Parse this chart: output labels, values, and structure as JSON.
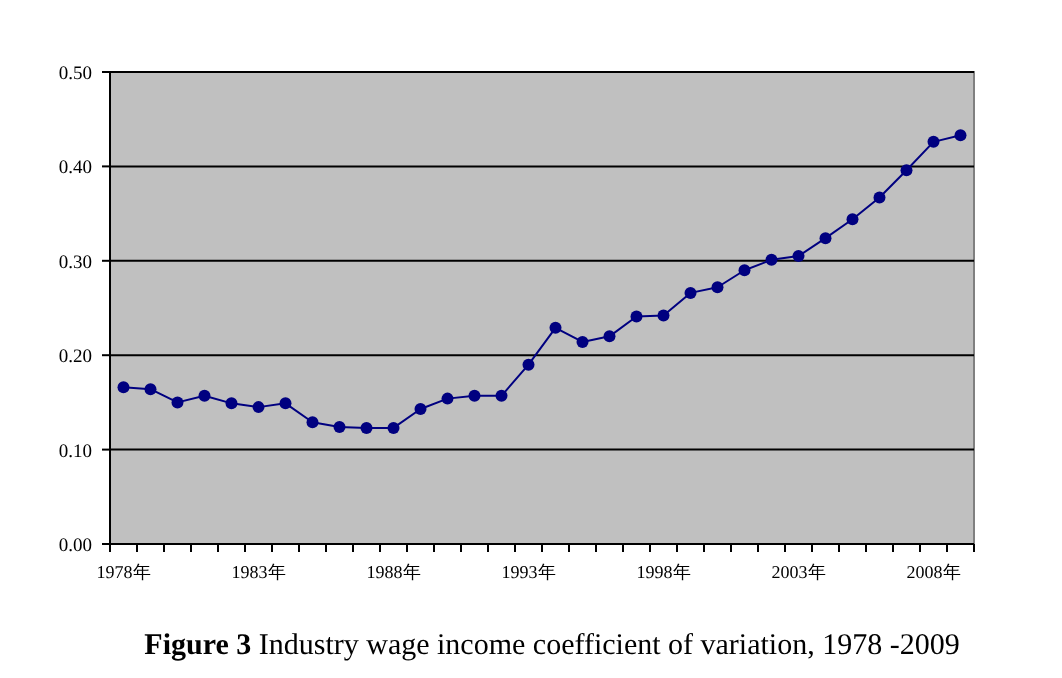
{
  "chart_data": {
    "type": "line",
    "title": "**Figure 3** Industry wage income coefficient of variation, 1978 -2009",
    "categories": [
      "1978年",
      null,
      null,
      null,
      null,
      "1983年",
      null,
      null,
      null,
      null,
      "1988年",
      null,
      null,
      null,
      null,
      "1993年",
      null,
      null,
      null,
      null,
      "1998年",
      null,
      null,
      null,
      null,
      "2003年",
      null,
      null,
      null,
      null,
      "2008年",
      null
    ],
    "values": [
      0.166,
      0.164,
      0.15,
      0.157,
      0.149,
      0.145,
      0.149,
      0.129,
      0.124,
      0.123,
      0.123,
      0.143,
      0.154,
      0.157,
      0.157,
      0.19,
      0.229,
      0.214,
      0.22,
      0.241,
      0.242,
      0.266,
      0.272,
      0.29,
      0.301,
      0.305,
      0.324,
      0.344,
      0.367,
      0.396,
      0.426,
      0.433
    ],
    "color": "#000080",
    "ylim": [
      0,
      0.5
    ],
    "yticks": [
      {
        "value": 0,
        "label": "0.00"
      },
      {
        "value": 0.1,
        "label": "0.10"
      },
      {
        "value": 0.2,
        "label": "0.20"
      },
      {
        "value": 0.3,
        "label": "0.30"
      },
      {
        "value": 0.4,
        "label": "0.40"
      },
      {
        "value": 0.5,
        "label": "0.50"
      }
    ],
    "grid": "y",
    "marker": "circle",
    "line_style": "solid"
  }
}
